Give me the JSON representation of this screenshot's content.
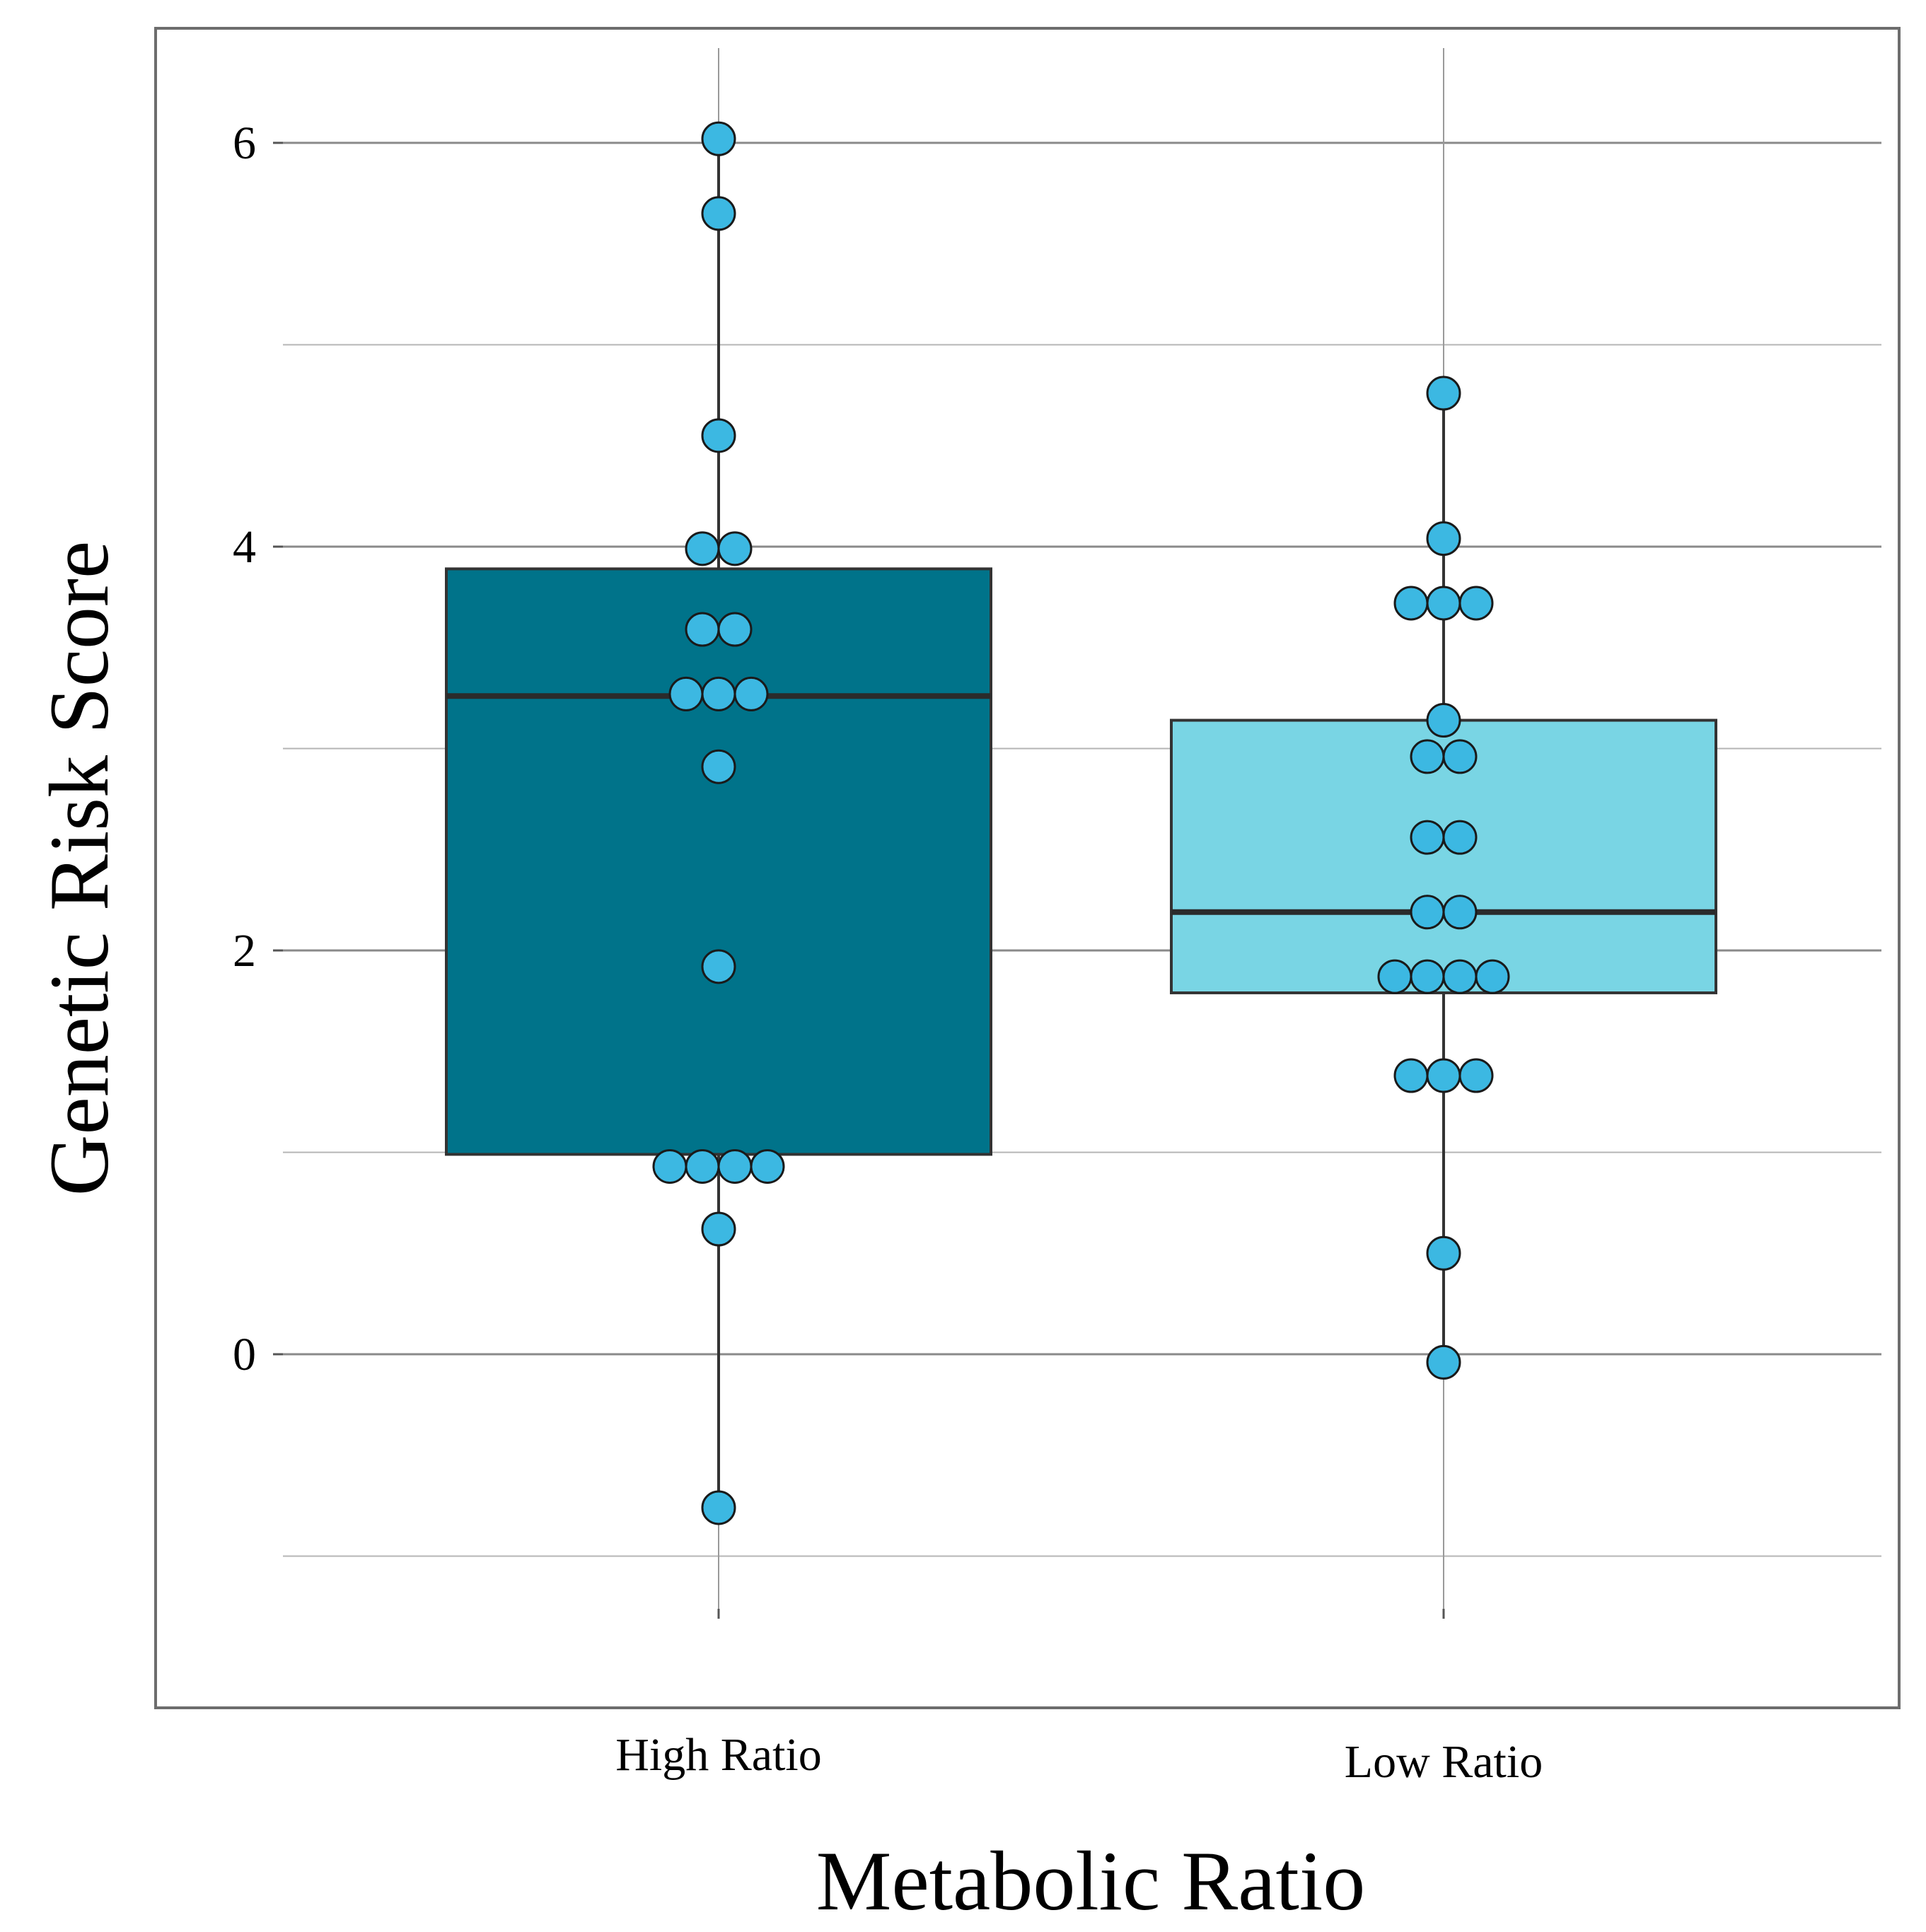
{
  "chart_data": {
    "type": "box",
    "xlabel": "Metabolic Ratio",
    "ylabel": "Genetic Risk Score",
    "ylim": [
      -1.75,
      6.6
    ],
    "major_ticks": [
      0,
      2,
      4,
      6
    ],
    "minor_gridlines": [
      -1,
      1,
      3,
      5
    ],
    "grid": true,
    "groups": [
      {
        "name": "High Ratio",
        "box_color": "#00738a",
        "stats": {
          "min": -0.76,
          "q1": 0.99,
          "median": 3.26,
          "q3": 3.89,
          "max": 6.02
        },
        "points": [
          {
            "value": 6.02,
            "count": 1
          },
          {
            "value": 5.65,
            "count": 1
          },
          {
            "value": 4.55,
            "count": 1
          },
          {
            "value": 3.99,
            "count": 2
          },
          {
            "value": 3.59,
            "count": 2
          },
          {
            "value": 3.27,
            "count": 3
          },
          {
            "value": 2.91,
            "count": 1
          },
          {
            "value": 1.92,
            "count": 1
          },
          {
            "value": 0.93,
            "count": 4
          },
          {
            "value": 0.62,
            "count": 1
          },
          {
            "value": -0.76,
            "count": 1
          }
        ]
      },
      {
        "name": "Low Ratio",
        "box_color": "#79d5e4",
        "stats": {
          "min": -0.04,
          "q1": 1.79,
          "median": 2.19,
          "q3": 3.14,
          "max": 4.76
        },
        "points": [
          {
            "value": 4.76,
            "count": 1
          },
          {
            "value": 4.04,
            "count": 1
          },
          {
            "value": 3.72,
            "count": 3
          },
          {
            "value": 3.14,
            "count": 1
          },
          {
            "value": 2.96,
            "count": 2
          },
          {
            "value": 2.56,
            "count": 2
          },
          {
            "value": 2.19,
            "count": 2
          },
          {
            "value": 1.87,
            "count": 4
          },
          {
            "value": 1.38,
            "count": 3
          },
          {
            "value": 0.5,
            "count": 1
          },
          {
            "value": -0.04,
            "count": 1
          }
        ]
      }
    ],
    "point_color": "#3cb8e2"
  }
}
